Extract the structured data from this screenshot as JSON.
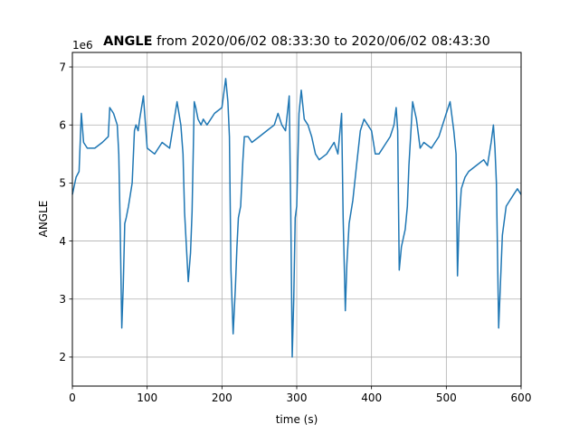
{
  "chart_data": {
    "type": "line",
    "title": {
      "bold": "ANGLE",
      "rest": " from 2020/06/02 08:33:30 to 2020/06/02 08:43:30"
    },
    "xlabel": "time (s)",
    "ylabel": "ANGLE",
    "offset_label": "1e6",
    "xlim": [
      0,
      600
    ],
    "ylim": [
      1.5,
      7.25
    ],
    "x_ticks": [
      0,
      100,
      200,
      300,
      400,
      500,
      600
    ],
    "y_ticks": [
      2,
      3,
      4,
      5,
      6,
      7
    ],
    "grid": true,
    "line_color": "#1f77b4",
    "series": [
      {
        "x": [
          0,
          5,
          9,
          12,
          15,
          20,
          30,
          40,
          48,
          50,
          55,
          60,
          62,
          64,
          66,
          68,
          70,
          72,
          75,
          80,
          83,
          85,
          88,
          90,
          95,
          100,
          110,
          120,
          130,
          135,
          140,
          145,
          148,
          150,
          155,
          158,
          160,
          163,
          165,
          168,
          172,
          175,
          180,
          190,
          200,
          205,
          208,
          210,
          212,
          215,
          218,
          220,
          222,
          225,
          228,
          230,
          235,
          240,
          250,
          260,
          270,
          275,
          280,
          285,
          290,
          292,
          294,
          296,
          298,
          300,
          303,
          306,
          310,
          315,
          320,
          325,
          330,
          340,
          350,
          355,
          360,
          362,
          365,
          367,
          370,
          375,
          380,
          385,
          390,
          395,
          400,
          405,
          410,
          420,
          425,
          430,
          433,
          435,
          437,
          440,
          445,
          448,
          450,
          455,
          460,
          465,
          470,
          480,
          490,
          500,
          505,
          510,
          513,
          515,
          517,
          520,
          525,
          530,
          540,
          550,
          555,
          560,
          563,
          565,
          567,
          570,
          575,
          580,
          585,
          590,
          595,
          600
        ],
        "y": [
          4.8,
          5.1,
          5.2,
          6.2,
          5.7,
          5.6,
          5.6,
          5.7,
          5.8,
          6.3,
          6.2,
          6.0,
          5.5,
          4.2,
          2.5,
          3.2,
          4.3,
          4.4,
          4.6,
          5.0,
          5.9,
          6.0,
          5.9,
          6.1,
          6.5,
          5.6,
          5.5,
          5.7,
          5.6,
          6.0,
          6.4,
          6.0,
          5.5,
          4.5,
          3.3,
          3.8,
          4.5,
          6.4,
          6.3,
          6.1,
          6.0,
          6.1,
          6.0,
          6.2,
          6.3,
          6.8,
          6.4,
          5.8,
          3.5,
          2.4,
          3.2,
          3.9,
          4.4,
          4.6,
          5.4,
          5.8,
          5.8,
          5.7,
          5.8,
          5.9,
          6.0,
          6.2,
          6.0,
          5.9,
          6.5,
          4.5,
          2.0,
          3.0,
          4.4,
          4.6,
          6.2,
          6.6,
          6.1,
          6.0,
          5.8,
          5.5,
          5.4,
          5.5,
          5.7,
          5.5,
          6.2,
          4.4,
          2.8,
          3.6,
          4.3,
          4.7,
          5.3,
          5.9,
          6.1,
          6.0,
          5.9,
          5.5,
          5.5,
          5.7,
          5.8,
          6.0,
          6.3,
          5.9,
          3.5,
          3.9,
          4.2,
          4.6,
          5.3,
          6.4,
          6.1,
          5.6,
          5.7,
          5.6,
          5.8,
          6.2,
          6.4,
          5.9,
          5.5,
          3.4,
          4.3,
          4.9,
          5.1,
          5.2,
          5.3,
          5.4,
          5.3,
          5.7,
          6.0,
          5.6,
          5.0,
          2.5,
          4.1,
          4.6,
          4.7,
          4.8,
          4.9,
          4.8
        ]
      }
    ]
  }
}
